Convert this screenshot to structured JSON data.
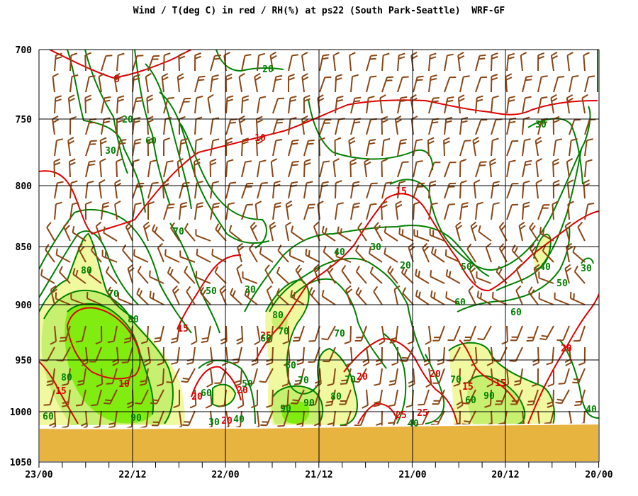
{
  "chart_data": {
    "type": "time-height cross-section",
    "title": "Wind / T(deg C) in red / RH(%) at ps22 (South Park-Seattle)  WRF-GF",
    "y_axis": {
      "label": "",
      "ticks": [
        "700",
        "750",
        "800",
        "850",
        "900",
        "950",
        "1000",
        "1050"
      ],
      "range": [
        700,
        1050
      ],
      "orientation": "pressure decreasing upward"
    },
    "x_axis": {
      "label": "",
      "ticks": [
        "23/00",
        "22/12",
        "22/00",
        "21/12",
        "21/00",
        "20/12",
        "20/00"
      ],
      "direction": "time runs right-to-left"
    },
    "grid": true,
    "terrain_color": "#E8B440",
    "rh_fill_colors": {
      "70-80": "#F0F8A0",
      "80-90": "#C8F070",
      "90+": "#80EC10"
    },
    "temperature_color": "#E00000",
    "rh_color": "#008000",
    "wind_barb_color": "#8B4513",
    "temperature_labels": [
      "5",
      "10",
      "15",
      "10",
      "15",
      "20",
      "15",
      "20",
      "20",
      "20",
      "25",
      "25",
      "15",
      "15",
      "20",
      "20",
      "25"
    ],
    "rh_labels": [
      "20",
      "30",
      "20",
      "60",
      "30",
      "70",
      "80",
      "70",
      "80",
      "50",
      "30",
      "40",
      "30",
      "20",
      "50",
      "60",
      "30",
      "50",
      "60",
      "40",
      "80",
      "70",
      "60",
      "70",
      "60",
      "70",
      "80",
      "90",
      "90",
      "80",
      "90",
      "70",
      "70",
      "90",
      "60",
      "40",
      "60",
      "50",
      "40",
      "40",
      "30",
      "60"
    ]
  }
}
